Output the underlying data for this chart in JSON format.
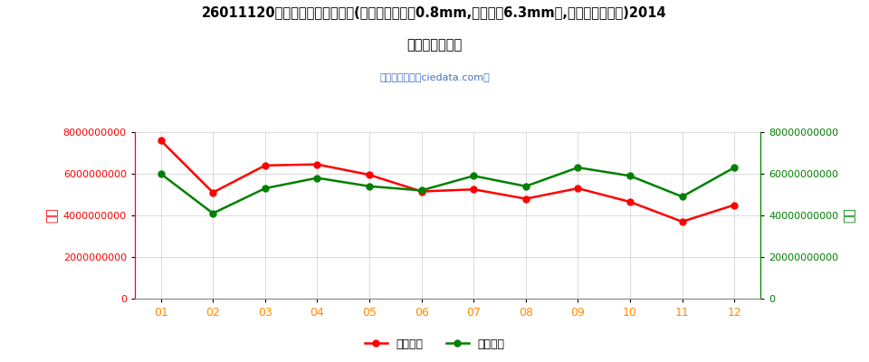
{
  "title_line1": "26011120未烧结铁矿砂及其精矿(平均粒度不小于0.8mm,但不大于6.3mm的,焙烧黄铁矿除外)2014",
  "title_line2": "年进口月度走势",
  "subtitle": "进出口服务网（ciedata.com）",
  "months": [
    "01",
    "02",
    "03",
    "04",
    "05",
    "06",
    "07",
    "08",
    "09",
    "10",
    "11",
    "12"
  ],
  "import_usd": [
    7600000000,
    5100000000,
    6400000000,
    6450000000,
    5950000000,
    5150000000,
    5250000000,
    4800000000,
    5300000000,
    4650000000,
    3700000000,
    4500000000
  ],
  "import_qty": [
    60000000000,
    41000000000,
    53000000000,
    58000000000,
    54000000000,
    52000000000,
    59000000000,
    54000000000,
    63000000000,
    59000000000,
    49000000000,
    63000000000
  ],
  "left_ylim": [
    0,
    8000000000
  ],
  "right_ylim": [
    0,
    80000000000
  ],
  "left_yticks": [
    0,
    2000000000,
    4000000000,
    6000000000,
    8000000000
  ],
  "right_yticks": [
    0,
    20000000000,
    40000000000,
    60000000000,
    80000000000
  ],
  "left_ylabel": "金额",
  "right_ylabel": "数量",
  "line1_color": "#FF0000",
  "line2_color": "#008000",
  "line1_label": "进口美元",
  "line2_label": "进口数量",
  "title_color": "#000000",
  "subtitle_color": "#4472C4",
  "left_tick_color": "#FF0000",
  "right_tick_color": "#008000",
  "xtick_color": "#FF8C00",
  "background_color": "#FFFFFF",
  "grid_color": "#CCCCCC"
}
